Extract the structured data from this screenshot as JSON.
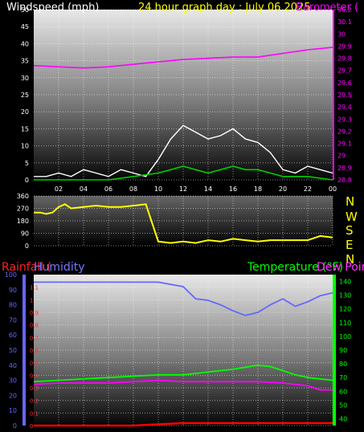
{
  "header": {
    "wind_label": "Windspeed (mph)",
    "graph_title": "24 hour graph day : July 06 2025",
    "baro_label": "Barometer ("
  },
  "colors": {
    "wind": "#ffffff",
    "gust": "#00cc00",
    "baro": "#ff00ff",
    "winddir": "#ffff00",
    "humidity": "#6666ff",
    "temperature": "#00ff00",
    "dewpoint": "#ff00ff",
    "rain": "#ff0000",
    "rain_axis": "#ff3333",
    "humidity_axis": "#6666ff",
    "temp_axis": "#00ff00"
  },
  "compass": [
    "N",
    "W",
    "S",
    "E",
    "N"
  ],
  "legend": {
    "rainfall": "Rainfall (",
    "humidity": "Humidity",
    "temperature": "Temperature (°F)",
    "dewpoint": "Dew Point"
  },
  "chart_data": [
    {
      "type": "line",
      "name": "wind-baro",
      "x_ticks": [
        "02",
        "04",
        "06",
        "08",
        "10",
        "12",
        "14",
        "16",
        "18",
        "20",
        "22",
        "00"
      ],
      "ylim_left": [
        0,
        50
      ],
      "yticks_left": [
        0,
        5,
        10,
        15,
        20,
        25,
        30,
        35,
        40,
        45,
        50
      ],
      "ylim_right": [
        28.8,
        30.2
      ],
      "yticks_right": [
        "30.2",
        "30.1",
        "30",
        "29.9",
        "29.8",
        "29.7",
        "29.6",
        "29.5",
        "29.4",
        "29.3",
        "29.2",
        "29.1",
        "29",
        "28.9",
        "28.8"
      ],
      "barometer": {
        "x": [
          0,
          2,
          4,
          6,
          8,
          10,
          12,
          14,
          16,
          18,
          20,
          22,
          24
        ],
        "y": [
          29.74,
          29.73,
          29.72,
          29.73,
          29.75,
          29.77,
          29.79,
          29.8,
          29.81,
          29.81,
          29.84,
          29.87,
          29.89
        ]
      },
      "windspeed": {
        "x": [
          0,
          1,
          2,
          3,
          4,
          5,
          6,
          7,
          8,
          9,
          10,
          11,
          12,
          13,
          14,
          15,
          16,
          17,
          18,
          19,
          20,
          21,
          22,
          23,
          24
        ],
        "y": [
          1,
          1,
          2,
          1,
          3,
          2,
          1,
          3,
          2,
          1,
          6,
          12,
          16,
          14,
          12,
          13,
          15,
          12,
          11,
          8,
          3,
          2,
          4,
          3,
          2
        ]
      },
      "gust": {
        "x": [
          0,
          2,
          4,
          6,
          8,
          10,
          11,
          12,
          13,
          14,
          15,
          16,
          17,
          18,
          19,
          20,
          22,
          24
        ],
        "y": [
          0,
          0,
          0,
          0,
          1,
          2,
          3,
          4,
          3,
          2,
          3,
          4,
          3,
          3,
          2,
          1,
          1,
          0
        ]
      }
    },
    {
      "type": "line",
      "name": "wind-direction",
      "yticks": [
        0,
        90,
        180,
        270,
        360
      ],
      "ylim": [
        0,
        360
      ],
      "direction": {
        "x": [
          0,
          0.5,
          1,
          1.5,
          2,
          2.5,
          3,
          4,
          5,
          6,
          7,
          8,
          9,
          10,
          11,
          12,
          13,
          14,
          15,
          16,
          17,
          18,
          19,
          20,
          21,
          22,
          23,
          24
        ],
        "y": [
          240,
          240,
          230,
          240,
          280,
          300,
          270,
          280,
          290,
          280,
          280,
          290,
          300,
          30,
          20,
          30,
          20,
          40,
          30,
          50,
          40,
          30,
          40,
          40,
          40,
          40,
          70,
          60
        ]
      }
    },
    {
      "type": "line",
      "name": "rain-humidity-temp",
      "yticks_rain": [
        "0",
        "0.1",
        "0.2",
        "0.3",
        "0.4",
        "0.5",
        "0.6",
        "0.7",
        "0.8",
        "0.9",
        "1",
        "1.1"
      ],
      "ylim_rain": [
        0,
        1.2
      ],
      "yticks_humidity": [
        "0",
        "10",
        "20",
        "30",
        "40",
        "50",
        "60",
        "70",
        "80",
        "90",
        "100"
      ],
      "ylim_humidity": [
        0,
        100
      ],
      "yticks_temp": [
        "40",
        "50",
        "60",
        "70",
        "80",
        "90",
        "100",
        "110",
        "120",
        "130",
        "140"
      ],
      "ylim_temp": [
        35,
        145
      ],
      "humidity": {
        "x": [
          0,
          2,
          4,
          6,
          8,
          10,
          12,
          13,
          14,
          15,
          16,
          17,
          18,
          19,
          20,
          21,
          22,
          23,
          24
        ],
        "y": [
          95,
          95,
          95,
          95,
          95,
          95,
          92,
          84,
          83,
          80,
          76,
          73,
          75,
          80,
          84,
          79,
          82,
          86,
          88
        ]
      },
      "temperature": {
        "x": [
          0,
          2,
          4,
          6,
          8,
          10,
          12,
          14,
          16,
          18,
          19,
          20,
          21,
          22,
          24
        ],
        "y": [
          67,
          68,
          69,
          70,
          71,
          72,
          72,
          74,
          76,
          79,
          78,
          75,
          72,
          70,
          68
        ]
      },
      "dewpoint": {
        "x": [
          0,
          2,
          4,
          6,
          8,
          10,
          12,
          14,
          16,
          18,
          20,
          22,
          23,
          24
        ],
        "y": [
          65,
          66,
          66,
          66,
          67,
          68,
          67,
          67,
          67,
          67,
          66,
          64,
          61,
          61
        ]
      },
      "rainfall": {
        "x": [
          0,
          8,
          10,
          12,
          14,
          16,
          18,
          20,
          22,
          24
        ],
        "y": [
          0,
          0,
          0.01,
          0.02,
          0.02,
          0.02,
          0.02,
          0.02,
          0.02,
          0.02
        ]
      }
    }
  ]
}
